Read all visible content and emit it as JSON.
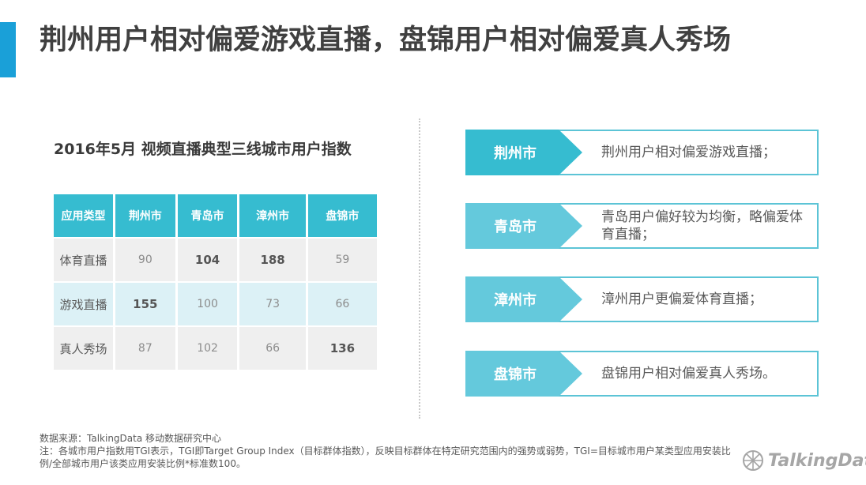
{
  "title": "荆州用户相对偏爱游戏直播，盘锦用户相对偏爱真人秀场",
  "table": {
    "title": "2016年5月 视频直播典型三线城市用户指数",
    "headers": [
      "应用类型",
      "荆州市",
      "青岛市",
      "漳州市",
      "盘锦市"
    ],
    "rows": [
      {
        "label": "体育直播",
        "values": [
          "90",
          "104",
          "188",
          "59"
        ]
      },
      {
        "label": "游戏直播",
        "values": [
          "155",
          "100",
          "73",
          "66"
        ]
      },
      {
        "label": "真人秀场",
        "values": [
          "87",
          "102",
          "66",
          "136"
        ]
      }
    ]
  },
  "cards": [
    {
      "city": "荆州市",
      "desc": "荆州用户相对偏爱游戏直播；",
      "color": "#36bcd0"
    },
    {
      "city": "青岛市",
      "desc": "青岛用户偏好较为均衡，略偏爱体育直播；",
      "color": "#64c9dc"
    },
    {
      "city": "漳州市",
      "desc": "漳州用户更偏爱体育直播；",
      "color": "#64c9dc"
    },
    {
      "city": "盘锦市",
      "desc": "盘锦用户相对偏爱真人秀场。",
      "color": "#64c9dc"
    }
  ],
  "footer": {
    "source": "数据来源：TalkingData 移动数据研究中心",
    "note": "注：各城市用户指数用TGI表示，TGI即Target Group Index（目标群体指数），反映目标群体在特定研究范围内的强势或弱势，TGI=目标城市用户某类型应用安装比例/全部城市用户该类应用安装比例*标准数100。",
    "logo": "TalkingData"
  },
  "colors": {
    "accent": "#1aa0d8",
    "header": "#36bcd0",
    "card_tag": "#64c9dc"
  }
}
